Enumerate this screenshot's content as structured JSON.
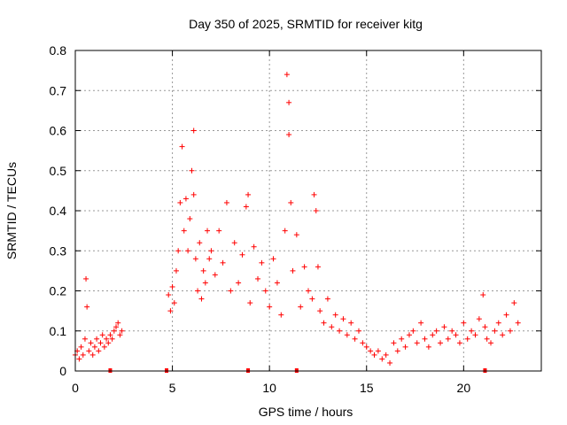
{
  "chart_data": {
    "type": "scatter",
    "title": "Day 350 of 2025, SRMTID for receiver kitg",
    "xlabel": "GPS time / hours",
    "ylabel": "SRMTID / TECUs",
    "xlim": [
      0,
      24
    ],
    "ylim": [
      0,
      0.8
    ],
    "xticks": [
      0,
      5,
      10,
      15,
      20
    ],
    "yticks": [
      0,
      0.1,
      0.2,
      0.3,
      0.4,
      0.5,
      0.6,
      0.7,
      0.8
    ],
    "xtick_labels": [
      "0",
      "5",
      "10",
      "15",
      "20"
    ],
    "ytick_labels": [
      "0",
      "0.1",
      "0.2",
      "0.3",
      "0.4",
      "0.5",
      "0.6",
      "0.7",
      "0.8"
    ],
    "grid": true,
    "marker": "+",
    "marker_color": "#ff0000",
    "series": [
      {
        "name": "SRMTID",
        "x": [
          0.0,
          0.1,
          0.2,
          0.3,
          0.4,
          0.5,
          0.55,
          0.6,
          0.7,
          0.8,
          0.9,
          1.0,
          1.1,
          1.2,
          1.3,
          1.4,
          1.5,
          1.6,
          1.7,
          1.8,
          1.9,
          2.0,
          2.1,
          2.2,
          2.3,
          2.4,
          4.8,
          4.9,
          5.0,
          5.1,
          5.2,
          5.3,
          5.4,
          5.5,
          5.6,
          5.7,
          5.8,
          5.9,
          6.0,
          6.1,
          6.1,
          6.2,
          6.3,
          6.4,
          6.5,
          6.6,
          6.7,
          6.8,
          6.9,
          7.0,
          7.2,
          7.4,
          7.6,
          7.8,
          8.0,
          8.2,
          8.4,
          8.6,
          8.8,
          8.9,
          9.0,
          9.2,
          9.4,
          9.6,
          9.8,
          10.0,
          10.2,
          10.4,
          10.6,
          10.8,
          10.9,
          11.0,
          11.0,
          11.1,
          11.2,
          11.4,
          11.6,
          11.8,
          12.0,
          12.2,
          12.3,
          12.4,
          12.5,
          12.6,
          12.8,
          13.0,
          13.2,
          13.4,
          13.6,
          13.8,
          14.0,
          14.2,
          14.4,
          14.6,
          14.8,
          15.0,
          15.2,
          15.4,
          15.6,
          15.8,
          16.0,
          16.2,
          16.4,
          16.6,
          16.8,
          17.0,
          17.2,
          17.4,
          17.6,
          17.8,
          18.0,
          18.2,
          18.4,
          18.6,
          18.8,
          19.0,
          19.2,
          19.4,
          19.6,
          19.8,
          20.0,
          20.2,
          20.4,
          20.6,
          20.8,
          21.0,
          21.1,
          21.2,
          21.4,
          21.6,
          21.8,
          22.0,
          22.2,
          22.4,
          22.6,
          22.8
        ],
        "y": [
          0.04,
          0.05,
          0.03,
          0.06,
          0.04,
          0.08,
          0.23,
          0.16,
          0.05,
          0.07,
          0.04,
          0.06,
          0.08,
          0.05,
          0.07,
          0.09,
          0.06,
          0.08,
          0.07,
          0.09,
          0.08,
          0.1,
          0.11,
          0.12,
          0.09,
          0.1,
          0.19,
          0.15,
          0.21,
          0.17,
          0.25,
          0.3,
          0.42,
          0.56,
          0.35,
          0.43,
          0.3,
          0.38,
          0.5,
          0.6,
          0.44,
          0.28,
          0.2,
          0.32,
          0.18,
          0.25,
          0.22,
          0.35,
          0.28,
          0.3,
          0.24,
          0.35,
          0.27,
          0.42,
          0.2,
          0.32,
          0.22,
          0.29,
          0.41,
          0.44,
          0.17,
          0.31,
          0.23,
          0.27,
          0.2,
          0.16,
          0.28,
          0.22,
          0.14,
          0.35,
          0.74,
          0.59,
          0.67,
          0.42,
          0.25,
          0.34,
          0.16,
          0.26,
          0.2,
          0.18,
          0.44,
          0.4,
          0.26,
          0.15,
          0.12,
          0.18,
          0.11,
          0.14,
          0.1,
          0.13,
          0.09,
          0.12,
          0.08,
          0.1,
          0.07,
          0.06,
          0.05,
          0.04,
          0.05,
          0.03,
          0.04,
          0.02,
          0.07,
          0.05,
          0.08,
          0.06,
          0.09,
          0.1,
          0.07,
          0.12,
          0.08,
          0.06,
          0.09,
          0.1,
          0.07,
          0.11,
          0.08,
          0.1,
          0.09,
          0.07,
          0.12,
          0.08,
          0.1,
          0.09,
          0.13,
          0.19,
          0.11,
          0.08,
          0.07,
          0.1,
          0.12,
          0.09,
          0.14,
          0.1,
          0.17,
          0.12
        ]
      }
    ],
    "baseline_markers_x": [
      1.8,
      4.7,
      8.9,
      11.4,
      21.1
    ]
  }
}
